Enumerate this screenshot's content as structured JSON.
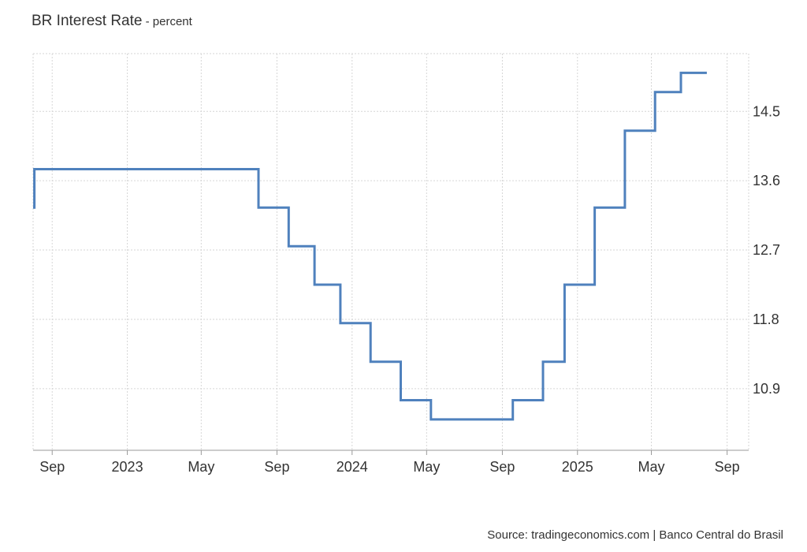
{
  "title": "BR Interest Rate",
  "unit": " - percent",
  "source": "Source: tradingeconomics.com | Banco Central do Brasil",
  "colors": {
    "line": "#4f81bd",
    "grid": "#d6d6d6",
    "axis": "#999999"
  },
  "chart_data": {
    "type": "line",
    "step": true,
    "grid": true,
    "title": "BR Interest Rate",
    "ylabel": "percent",
    "xlim": [
      "2022-08-01",
      "2025-10-06"
    ],
    "ylim": [
      10.1,
      15.25
    ],
    "y_ticks": [
      10.9,
      11.8,
      12.7,
      13.6,
      14.5
    ],
    "y_tick_labels": [
      "10.9",
      "11.8",
      "12.7",
      "13.6",
      "14.5"
    ],
    "x_ticks": [
      "2022-09-01",
      "2023-01-01",
      "2023-05-01",
      "2023-09-01",
      "2024-01-01",
      "2024-05-01",
      "2024-09-01",
      "2025-01-01",
      "2025-05-01",
      "2025-09-01"
    ],
    "x_tick_labels": [
      "Sep",
      "2023",
      "May",
      "Sep",
      "2024",
      "May",
      "Sep",
      "2025",
      "May",
      "Sep"
    ],
    "series": [
      {
        "x": [
          "2022-08-01",
          "2022-08-03",
          "2023-08-02",
          "2023-09-20",
          "2023-11-01",
          "2023-12-13",
          "2024-01-31",
          "2024-03-20",
          "2024-05-08",
          "2024-09-18",
          "2024-11-06",
          "2024-12-11",
          "2025-01-29",
          "2025-03-19",
          "2025-05-07",
          "2025-06-18",
          "2025-07-30"
        ],
        "y": [
          13.25,
          13.75,
          13.25,
          12.75,
          12.25,
          11.75,
          11.25,
          10.75,
          10.5,
          10.75,
          11.25,
          12.25,
          13.25,
          14.25,
          14.75,
          15.0,
          15.0
        ]
      }
    ]
  }
}
